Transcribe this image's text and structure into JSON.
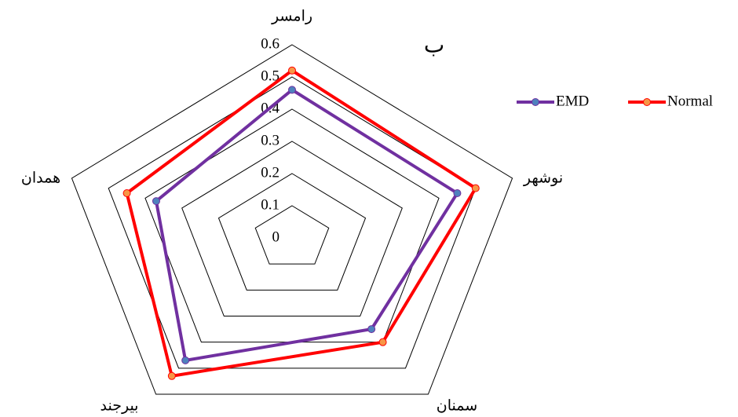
{
  "chart_data": {
    "type": "radar",
    "annotation": "ب",
    "categories": [
      "رامسر",
      "نوشهر",
      "سمنان",
      "بیرجند",
      "همدان"
    ],
    "series": [
      {
        "name": "EMD",
        "color": "#7030a0",
        "marker_color": "#4f81bd",
        "values": [
          0.46,
          0.45,
          0.35,
          0.47,
          0.37
        ]
      },
      {
        "name": "Normal",
        "color": "#ff0000",
        "marker_color": "#f79646",
        "values": [
          0.52,
          0.5,
          0.4,
          0.53,
          0.45
        ]
      }
    ],
    "ylim": [
      0,
      0.6
    ],
    "yticks": [
      0,
      0.1,
      0.2,
      0.3,
      0.4,
      0.5,
      0.6
    ],
    "grid": true,
    "legend": "top-right"
  }
}
